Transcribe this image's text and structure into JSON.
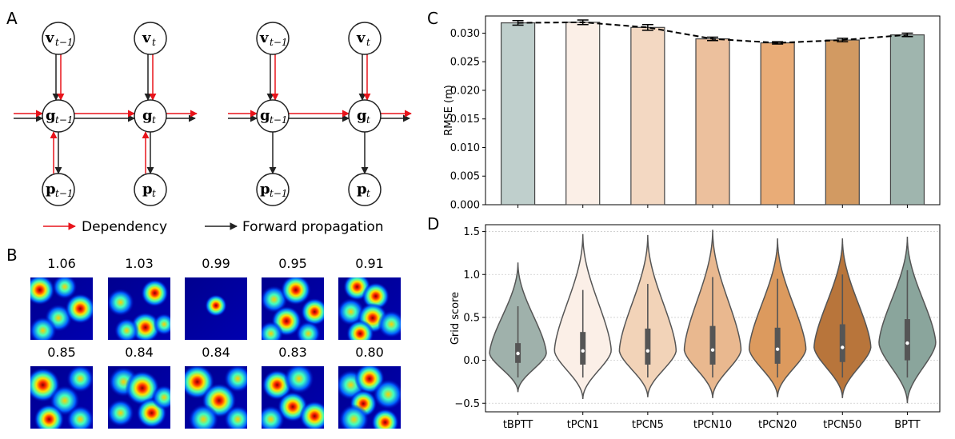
{
  "panels": {
    "a": "A",
    "b": "B",
    "c": "C",
    "d": "D"
  },
  "panel_a": {
    "graphs": [
      {
        "v_prev": {
          "base": "v",
          "sub": "t−1"
        },
        "v_cur": {
          "base": "v",
          "sub": "t"
        },
        "g_prev": {
          "base": "g",
          "sub": "t−1"
        },
        "g_cur": {
          "base": "g",
          "sub": "t"
        },
        "p_prev": {
          "base": "p",
          "sub": "t−1"
        },
        "p_cur": {
          "base": "p",
          "sub": "t"
        }
      },
      {
        "v_prev": {
          "base": "v",
          "sub": "t−1"
        },
        "v_cur": {
          "base": "v",
          "sub": "t"
        },
        "g_prev": {
          "base": "g",
          "sub": "t−1"
        },
        "g_cur": {
          "base": "g",
          "sub": "t"
        },
        "p_prev": {
          "base": "p",
          "sub": "t−1"
        },
        "p_cur": {
          "base": "p",
          "sub": "t"
        }
      }
    ],
    "legend": {
      "dependency": "Dependency",
      "forward": "Forward propagation"
    },
    "colors": {
      "dependency": "#e8141b",
      "forward": "#222222"
    }
  },
  "panel_b": {
    "scores": [
      "1.06",
      "1.03",
      "0.99",
      "0.95",
      "0.91",
      "0.85",
      "0.84",
      "0.84",
      "0.83",
      "0.80"
    ]
  },
  "chart_data": [
    {
      "type": "bar",
      "categories": [
        "tBPTT",
        "tPCN1",
        "tPCN5",
        "tPCN10",
        "tPCN20",
        "tPCN50",
        "BPTT"
      ],
      "values": [
        0.0318,
        0.0319,
        0.031,
        0.029,
        0.0283,
        0.0288,
        0.0297
      ],
      "errors": [
        0.0004,
        0.0004,
        0.0005,
        0.0003,
        0.0002,
        0.0003,
        0.0003
      ],
      "xlabel": "",
      "ylabel": "RMSE (m)",
      "ylim": [
        0,
        0.033
      ],
      "yticks": [
        "0.000",
        "0.005",
        "0.010",
        "0.015",
        "0.020",
        "0.025",
        "0.030"
      ],
      "colors": [
        "#bfcfcc",
        "#fbefe7",
        "#f3d8c2",
        "#ecc09d",
        "#e9ac77",
        "#d29a62",
        "#9fb5ae"
      ],
      "dashed_line": true
    },
    {
      "type": "violin",
      "categories": [
        "tBPTT",
        "tPCN1",
        "tPCN5",
        "tPCN10",
        "tPCN20",
        "tPCN50",
        "BPTT"
      ],
      "series": [
        {
          "name": "tBPTT",
          "min": -0.37,
          "max": 1.14,
          "q1": -0.03,
          "median": 0.08,
          "q3": 0.2,
          "whisker_low": -0.2,
          "whisker_high": 0.63
        },
        {
          "name": "tPCN1",
          "min": -0.45,
          "max": 1.47,
          "q1": -0.05,
          "median": 0.11,
          "q3": 0.33,
          "whisker_low": -0.2,
          "whisker_high": 0.82
        },
        {
          "name": "tPCN5",
          "min": -0.43,
          "max": 1.46,
          "q1": -0.05,
          "median": 0.11,
          "q3": 0.37,
          "whisker_low": -0.2,
          "whisker_high": 0.89
        },
        {
          "name": "tPCN10",
          "min": -0.44,
          "max": 1.52,
          "q1": -0.05,
          "median": 0.12,
          "q3": 0.4,
          "whisker_low": -0.2,
          "whisker_high": 0.97
        },
        {
          "name": "tPCN20",
          "min": -0.43,
          "max": 1.42,
          "q1": -0.04,
          "median": 0.13,
          "q3": 0.38,
          "whisker_low": -0.2,
          "whisker_high": 0.95
        },
        {
          "name": "tPCN50",
          "min": -0.44,
          "max": 1.42,
          "q1": -0.02,
          "median": 0.15,
          "q3": 0.42,
          "whisker_low": -0.2,
          "whisker_high": 1.0
        },
        {
          "name": "BPTT",
          "min": -0.5,
          "max": 1.44,
          "q1": 0.0,
          "median": 0.2,
          "q3": 0.48,
          "whisker_low": -0.2,
          "whisker_high": 1.05
        }
      ],
      "xlabel": "",
      "ylabel": "Grid score",
      "ylim": [
        -0.6,
        1.58
      ],
      "yticks": [
        "−0.5",
        "0.0",
        "0.5",
        "1.0",
        "1.5"
      ],
      "ytick_values": [
        -0.5,
        0.0,
        0.5,
        1.0,
        1.5
      ],
      "colors": [
        "#9fb1ab",
        "#fbefe7",
        "#f2d3b8",
        "#e9b88f",
        "#dc9a5e",
        "#b8753b",
        "#8aa59c"
      ],
      "grid": "horizontal-dotted"
    }
  ]
}
